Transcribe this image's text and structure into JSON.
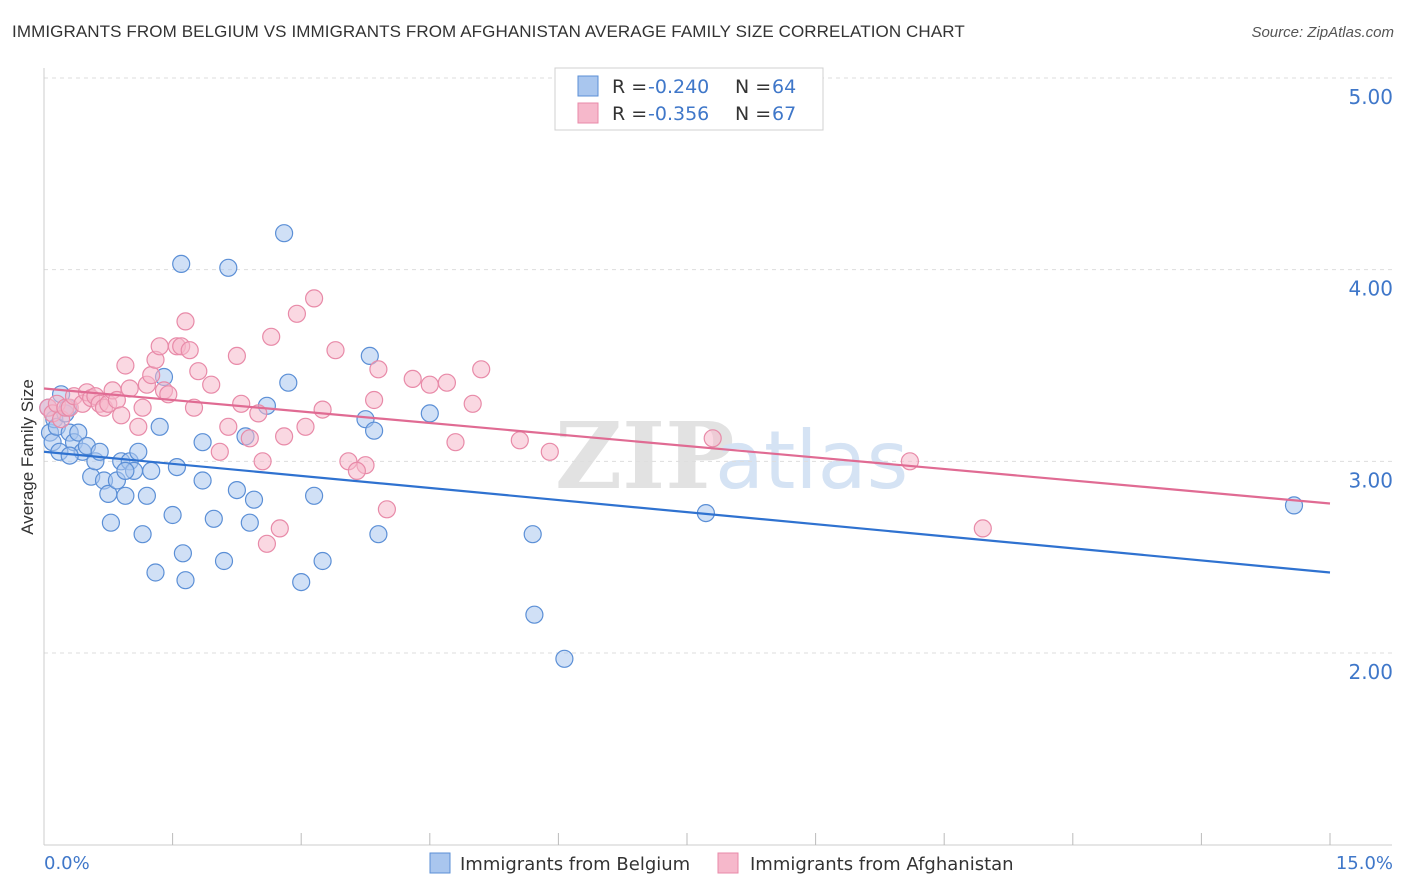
{
  "title": "IMMIGRANTS FROM BELGIUM VS IMMIGRANTS FROM AFGHANISTAN AVERAGE FAMILY SIZE CORRELATION CHART",
  "source": "Source: ZipAtlas.com",
  "colors": {
    "blue_fill": "#a9c6ee",
    "blue_stroke": "#5b8fd6",
    "blue_line": "#2f72d0",
    "pink_fill": "#f6b8cb",
    "pink_stroke": "#e88aa8",
    "pink_line": "#e06b93",
    "tick_text": "#3f77c9"
  },
  "legend": {
    "r_label": "R =",
    "n_label": "N =",
    "rows": [
      {
        "r": "-0.240",
        "n": "64"
      },
      {
        "r": "-0.356",
        "n": "67"
      }
    ]
  },
  "watermark": {
    "zip": "ZIP",
    "atlas": "atlas"
  },
  "chart_data": {
    "type": "scatter",
    "title": "IMMIGRANTS FROM BELGIUM VS IMMIGRANTS FROM AFGHANISTAN AVERAGE FAMILY SIZE CORRELATION CHART",
    "xlabel": "",
    "ylabel": "Average Family Size",
    "xlim": [
      0,
      15
    ],
    "ylim": [
      1.0,
      5.0
    ],
    "x_tick_labels": [
      "0.0%",
      "15.0%"
    ],
    "y_ticks": [
      2.0,
      3.0,
      4.0,
      5.0
    ],
    "y_tick_labels": [
      "2.00",
      "3.00",
      "4.00",
      "5.00"
    ],
    "grid": true,
    "series": [
      {
        "name": "Immigrants from Belgium",
        "color": "#5b8fd6",
        "trend": {
          "x0": 0,
          "y0": 3.05,
          "x1": 15,
          "y1": 2.42
        },
        "points": [
          [
            0.05,
            3.28
          ],
          [
            0.07,
            3.15
          ],
          [
            0.1,
            3.1
          ],
          [
            0.12,
            3.22
          ],
          [
            0.15,
            3.18
          ],
          [
            0.18,
            3.05
          ],
          [
            0.2,
            3.35
          ],
          [
            0.25,
            3.25
          ],
          [
            0.28,
            3.28
          ],
          [
            0.3,
            3.15
          ],
          [
            0.35,
            3.1
          ],
          [
            0.4,
            3.15
          ],
          [
            0.45,
            3.05
          ],
          [
            0.5,
            3.08
          ],
          [
            0.55,
            2.92
          ],
          [
            0.6,
            3.0
          ],
          [
            0.65,
            3.05
          ],
          [
            0.7,
            2.9
          ],
          [
            0.75,
            2.83
          ],
          [
            0.78,
            2.68
          ],
          [
            0.85,
            2.9
          ],
          [
            0.9,
            3.0
          ],
          [
            0.95,
            2.82
          ],
          [
            1.0,
            3.0
          ],
          [
            1.05,
            2.95
          ],
          [
            1.1,
            3.05
          ],
          [
            1.15,
            2.62
          ],
          [
            1.2,
            2.82
          ],
          [
            1.25,
            2.95
          ],
          [
            1.3,
            2.42
          ],
          [
            1.35,
            3.18
          ],
          [
            1.4,
            3.44
          ],
          [
            1.5,
            2.72
          ],
          [
            1.55,
            2.97
          ],
          [
            1.6,
            4.03
          ],
          [
            1.62,
            2.52
          ],
          [
            1.65,
            2.38
          ],
          [
            1.85,
            2.9
          ],
          [
            1.85,
            3.1
          ],
          [
            1.98,
            2.7
          ],
          [
            2.1,
            2.48
          ],
          [
            2.15,
            4.01
          ],
          [
            2.25,
            2.85
          ],
          [
            2.35,
            3.13
          ],
          [
            2.4,
            2.68
          ],
          [
            2.45,
            2.8
          ],
          [
            2.6,
            3.29
          ],
          [
            2.8,
            4.19
          ],
          [
            2.85,
            3.41
          ],
          [
            3.0,
            2.37
          ],
          [
            3.15,
            2.82
          ],
          [
            3.25,
            2.48
          ],
          [
            3.75,
            3.22
          ],
          [
            3.8,
            3.55
          ],
          [
            3.85,
            3.16
          ],
          [
            3.9,
            2.62
          ],
          [
            4.5,
            3.25
          ],
          [
            5.7,
            2.62
          ],
          [
            5.72,
            2.2
          ],
          [
            6.07,
            1.97
          ],
          [
            7.72,
            2.73
          ],
          [
            14.58,
            2.77
          ],
          [
            0.95,
            2.95
          ],
          [
            0.3,
            3.03
          ]
        ]
      },
      {
        "name": "Immigrants from Afghanistan",
        "color": "#e88aa8",
        "trend": {
          "x0": 0,
          "y0": 3.38,
          "x1": 15,
          "y1": 2.78
        },
        "points": [
          [
            0.05,
            3.28
          ],
          [
            0.1,
            3.25
          ],
          [
            0.15,
            3.3
          ],
          [
            0.2,
            3.22
          ],
          [
            0.25,
            3.28
          ],
          [
            0.3,
            3.28
          ],
          [
            0.35,
            3.34
          ],
          [
            0.45,
            3.3
          ],
          [
            0.5,
            3.36
          ],
          [
            0.55,
            3.33
          ],
          [
            0.6,
            3.34
          ],
          [
            0.65,
            3.3
          ],
          [
            0.7,
            3.28
          ],
          [
            0.75,
            3.3
          ],
          [
            0.8,
            3.37
          ],
          [
            0.85,
            3.32
          ],
          [
            0.9,
            3.24
          ],
          [
            0.95,
            3.5
          ],
          [
            1.0,
            3.38
          ],
          [
            1.1,
            3.18
          ],
          [
            1.15,
            3.28
          ],
          [
            1.2,
            3.4
          ],
          [
            1.25,
            3.45
          ],
          [
            1.3,
            3.53
          ],
          [
            1.35,
            3.6
          ],
          [
            1.4,
            3.37
          ],
          [
            1.45,
            3.35
          ],
          [
            1.55,
            3.6
          ],
          [
            1.6,
            3.6
          ],
          [
            1.65,
            3.73
          ],
          [
            1.7,
            3.58
          ],
          [
            1.75,
            3.28
          ],
          [
            1.8,
            3.47
          ],
          [
            1.95,
            3.4
          ],
          [
            2.05,
            3.05
          ],
          [
            2.15,
            3.18
          ],
          [
            2.25,
            3.55
          ],
          [
            2.3,
            3.3
          ],
          [
            2.4,
            3.12
          ],
          [
            2.5,
            3.25
          ],
          [
            2.55,
            3.0
          ],
          [
            2.65,
            3.65
          ],
          [
            2.75,
            2.65
          ],
          [
            2.8,
            3.13
          ],
          [
            2.95,
            3.77
          ],
          [
            3.05,
            3.18
          ],
          [
            3.15,
            3.85
          ],
          [
            3.25,
            3.27
          ],
          [
            3.4,
            3.58
          ],
          [
            3.55,
            3.0
          ],
          [
            3.75,
            2.98
          ],
          [
            3.85,
            3.32
          ],
          [
            3.9,
            3.48
          ],
          [
            4.0,
            2.75
          ],
          [
            4.3,
            3.43
          ],
          [
            4.5,
            3.4
          ],
          [
            4.7,
            3.41
          ],
          [
            4.8,
            3.1
          ],
          [
            5.0,
            3.3
          ],
          [
            5.1,
            3.48
          ],
          [
            5.55,
            3.11
          ],
          [
            5.9,
            3.05
          ],
          [
            7.8,
            3.12
          ],
          [
            10.1,
            3.0
          ],
          [
            10.95,
            2.65
          ],
          [
            2.6,
            2.57
          ],
          [
            3.65,
            2.95
          ]
        ]
      }
    ]
  },
  "bottom_legend": [
    "Immigrants from Belgium",
    "Immigrants from Afghanistan"
  ]
}
